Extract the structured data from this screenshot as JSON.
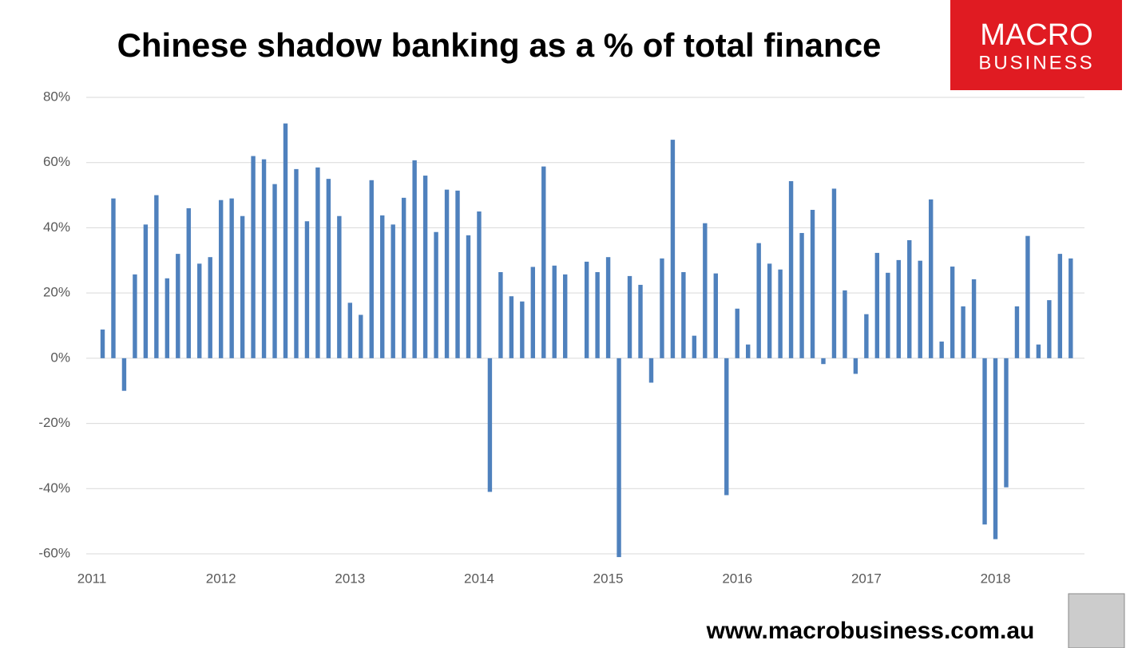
{
  "chart_data": {
    "type": "bar",
    "title": "Chinese shadow banking as a % of total finance",
    "annotations": [
      "MACRO",
      "BUSINESS",
      "www.macrobusiness.com.au"
    ],
    "categories": [
      "2011",
      null,
      null,
      null,
      null,
      null,
      null,
      null,
      null,
      null,
      null,
      null,
      "2012",
      null,
      null,
      null,
      null,
      null,
      null,
      null,
      null,
      null,
      null,
      null,
      "2013",
      null,
      null,
      null,
      null,
      null,
      null,
      null,
      null,
      null,
      null,
      null,
      "2014",
      null,
      null,
      null,
      null,
      null,
      null,
      null,
      null,
      null,
      null,
      null,
      "2015",
      null,
      null,
      null,
      null,
      null,
      null,
      null,
      null,
      null,
      null,
      null,
      "2016",
      null,
      null,
      null,
      null,
      null,
      null,
      null,
      null,
      null,
      null,
      null,
      "2017",
      null,
      null,
      null,
      null,
      null,
      null,
      null,
      null,
      null,
      null,
      null,
      "2018",
      null,
      null,
      null,
      null,
      null,
      null,
      null
    ],
    "values": [
      null,
      8.8,
      49,
      -10,
      25.7,
      41,
      50,
      24.5,
      32,
      46,
      29,
      31,
      48.5,
      49,
      43.6,
      62,
      61,
      53.4,
      72,
      58,
      42,
      58.5,
      55,
      43.6,
      17,
      13.3,
      54.6,
      43.8,
      41,
      49.2,
      60.7,
      56,
      38.7,
      51.7,
      51.4,
      37.7,
      45,
      -41,
      26.4,
      19,
      17.4,
      28,
      58.8,
      28.4,
      25.7,
      null,
      29.6,
      26.4,
      31,
      -61,
      25.2,
      22.5,
      -7.5,
      30.6,
      67,
      26.4,
      6.9,
      41.4,
      26,
      -42,
      15.2,
      4.2,
      35.3,
      29,
      27.2,
      54.3,
      38.4,
      45.5,
      -1.8,
      52,
      20.8,
      -4.8,
      13.5,
      32.3,
      26.2,
      30.1,
      36.2,
      29.9,
      48.7,
      5.1,
      28.1,
      15.9,
      24.2,
      -51,
      -55.5,
      -39.6,
      15.9,
      37.5,
      4.2,
      17.8,
      32,
      30.6
    ],
    "color": "#4f81bd",
    "ylim": [
      -60,
      80
    ],
    "yticks": [
      {
        "value": -60,
        "label": "-60%"
      },
      {
        "value": -40,
        "label": "-40%"
      },
      {
        "value": -20,
        "label": "-20%"
      },
      {
        "value": 0,
        "label": "0%"
      },
      {
        "value": 20,
        "label": "20%"
      },
      {
        "value": 40,
        "label": "40%"
      },
      {
        "value": 60,
        "label": "60%"
      },
      {
        "value": 80,
        "label": "80%"
      }
    ],
    "grid": true
  }
}
